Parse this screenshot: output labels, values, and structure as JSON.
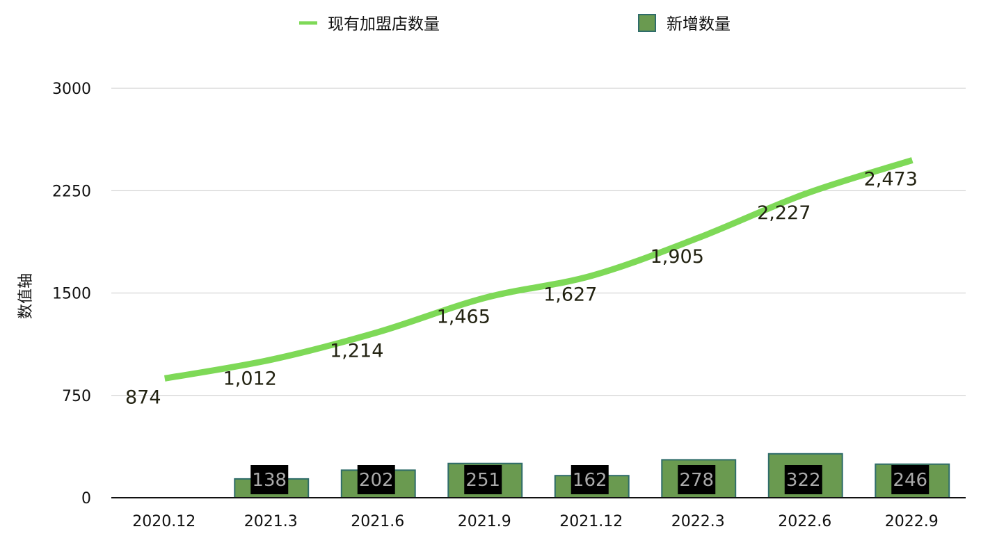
{
  "chart_data": {
    "type": "bar",
    "categories": [
      "2020.12",
      "2021.3",
      "2021.6",
      "2021.9",
      "2021.12",
      "2022.3",
      "2022.6",
      "2022.9"
    ],
    "series": [
      {
        "name": "现有加盟店数量",
        "type": "line",
        "color": "#7ed957",
        "values": [
          874,
          1012,
          1214,
          1465,
          1627,
          1905,
          2227,
          2473
        ],
        "labels": [
          "874",
          "1,012",
          "1,214",
          "1,465",
          "1,627",
          "1,905",
          "2,227",
          "2,473"
        ]
      },
      {
        "name": "新增数量",
        "type": "bar",
        "color": "#6a9a50",
        "border_color": "#2f6c6a",
        "values": [
          null,
          138,
          202,
          251,
          162,
          278,
          322,
          246
        ],
        "labels": [
          "",
          "138",
          "202",
          "251",
          "162",
          "278",
          "322",
          "246"
        ]
      }
    ],
    "ylabel": "数值轴",
    "ylim": [
      0,
      3000
    ],
    "yticks": [
      "0",
      "750",
      "1500",
      "2250",
      "3000"
    ],
    "grid": true,
    "legend_position": "top"
  }
}
